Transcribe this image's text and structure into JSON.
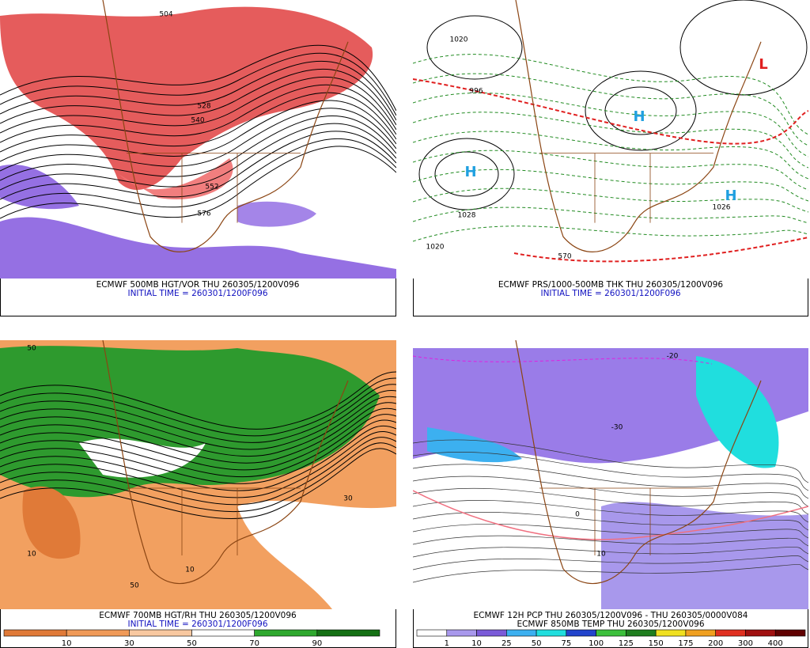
{
  "panels": [
    {
      "caption": "ECMWF 500MB HGT/VOR THU 260305/1200V096",
      "initial_time": "INITIAL TIME = 260301/1200F096",
      "contour_labels": [
        "504",
        "540",
        "528",
        "576",
        "552"
      ]
    },
    {
      "caption": "ECMWF PRS/1000-500MB THK THU 260305/1200V096",
      "initial_time": "INITIAL TIME = 260301/1200F096",
      "contour_labels": [
        "1020",
        "1028",
        "1020",
        "1026",
        "996",
        "570",
        "H",
        "H",
        "H",
        "L"
      ]
    },
    {
      "caption": "ECMWF 700MB HGT/RH THU 260305/1200V096",
      "initial_time": "INITIAL TIME = 260301/1200F096",
      "contour_labels": [
        "50",
        "10",
        "50",
        "10",
        "30"
      ],
      "colorbar": {
        "labels": [
          10,
          30,
          50,
          70,
          90
        ],
        "colors": [
          "#e07a38",
          "#f09a58",
          "#f8c8a0",
          "#ffffff",
          "#2ea82e",
          "#147014"
        ]
      }
    },
    {
      "caption": "ECMWF 12H PCP THU 260305/1200V096 - THU 260305/0000V084",
      "initial_time": "ECMWF 850MB TEMP THU 260305/1200V096",
      "contour_labels": [
        "-30",
        "-20",
        "0",
        "10"
      ],
      "colorbar": {
        "labels": [
          1,
          10,
          25,
          50,
          75,
          100,
          125,
          150,
          175,
          200,
          300,
          400
        ],
        "colors": [
          "#ffffff",
          "#a898ec",
          "#7a5ad8",
          "#3cb0f0",
          "#20dede",
          "#2244cc",
          "#3cc03c",
          "#1e7e1e",
          "#f0e020",
          "#f0a020",
          "#e03020",
          "#a01010",
          "#600000"
        ]
      }
    }
  ]
}
